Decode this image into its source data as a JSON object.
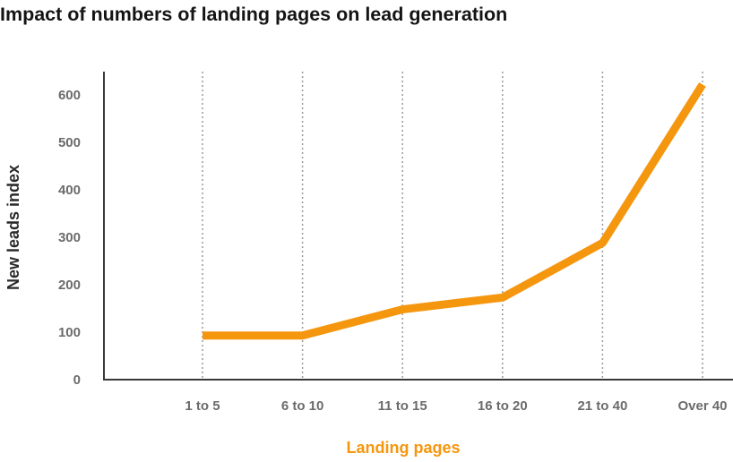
{
  "chart_data": {
    "type": "line",
    "title": "Impact of numbers of landing pages on lead generation",
    "xlabel": "Landing pages",
    "ylabel": "New leads index",
    "categories": [
      "1 to 5",
      "6 to 10",
      "11 to 15",
      "16 to 20",
      "21 to 40",
      "Over 40"
    ],
    "values": [
      93,
      93,
      148,
      173,
      288,
      622
    ],
    "yticks": [
      0,
      100,
      200,
      300,
      400,
      500,
      600
    ],
    "ylim": [
      0,
      640
    ],
    "grid": "vertical dotted",
    "line_color": "#f5960f"
  }
}
